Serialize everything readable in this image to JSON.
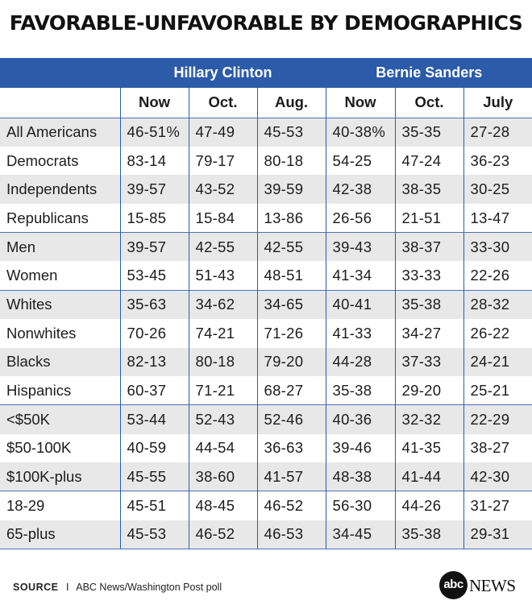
{
  "title": "FAVORABLE-UNFAVORABLE BY DEMOGRAPHICS",
  "accent_color": "#2b5ba9",
  "chart_data": {
    "type": "table",
    "title": "FAVORABLE-UNFAVORABLE BY DEMOGRAPHICS",
    "groups": [
      "Hillary Clinton",
      "Bernie Sanders"
    ],
    "columns": [
      "Now",
      "Oct.",
      "Aug.",
      "Now",
      "Oct.",
      "July"
    ],
    "rows": [
      {
        "label": "All Americans",
        "values": [
          "46-51%",
          "47-49",
          "45-53",
          "40-38%",
          "35-35",
          "27-28"
        ]
      },
      {
        "label": "Democrats",
        "values": [
          "83-14",
          "79-17",
          "80-18",
          "54-25",
          "47-24",
          "36-23"
        ]
      },
      {
        "label": "Independents",
        "values": [
          "39-57",
          "43-52",
          "39-59",
          "42-38",
          "38-35",
          "30-25"
        ]
      },
      {
        "label": "Republicans",
        "values": [
          "15-85",
          "15-84",
          "13-86",
          "26-56",
          "21-51",
          "13-47"
        ]
      },
      {
        "label": "Men",
        "values": [
          "39-57",
          "42-55",
          "42-55",
          "39-43",
          "38-37",
          "33-30"
        ]
      },
      {
        "label": "Women",
        "values": [
          "53-45",
          "51-43",
          "48-51",
          "41-34",
          "33-33",
          "22-26"
        ]
      },
      {
        "label": "Whites",
        "values": [
          "35-63",
          "34-62",
          "34-65",
          "40-41",
          "35-38",
          "28-32"
        ]
      },
      {
        "label": "Nonwhites",
        "values": [
          "70-26",
          "74-21",
          "71-26",
          "41-33",
          "34-27",
          "26-22"
        ]
      },
      {
        "label": "Blacks",
        "values": [
          "82-13",
          "80-18",
          "79-20",
          "44-28",
          "37-33",
          "24-21"
        ]
      },
      {
        "label": "Hispanics",
        "values": [
          "60-37",
          "71-21",
          "68-27",
          "35-38",
          "29-20",
          "25-21"
        ]
      },
      {
        "label": "<$50K",
        "values": [
          "53-44",
          "52-43",
          "52-46",
          "40-36",
          "32-32",
          "22-29"
        ]
      },
      {
        "label": "$50-100K",
        "values": [
          "40-59",
          "44-54",
          "36-63",
          "39-46",
          "41-35",
          "38-27"
        ]
      },
      {
        "label": "$100K-plus",
        "values": [
          "45-55",
          "38-60",
          "41-57",
          "48-38",
          "41-44",
          "42-30"
        ]
      },
      {
        "label": "18-29",
        "values": [
          "45-51",
          "48-45",
          "46-52",
          "56-30",
          "44-26",
          "31-27"
        ]
      },
      {
        "label": "65-plus",
        "values": [
          "45-53",
          "46-52",
          "46-53",
          "34-45",
          "35-38",
          "29-31"
        ]
      }
    ],
    "row_group_starts": [
      0,
      4,
      6,
      10,
      13
    ]
  },
  "footer": {
    "source_label": "SOURCE",
    "separator": "I",
    "source_text": "ABC News/Washington Post poll"
  },
  "logo": {
    "circle_text": "abc",
    "news_text": "NEWS"
  }
}
